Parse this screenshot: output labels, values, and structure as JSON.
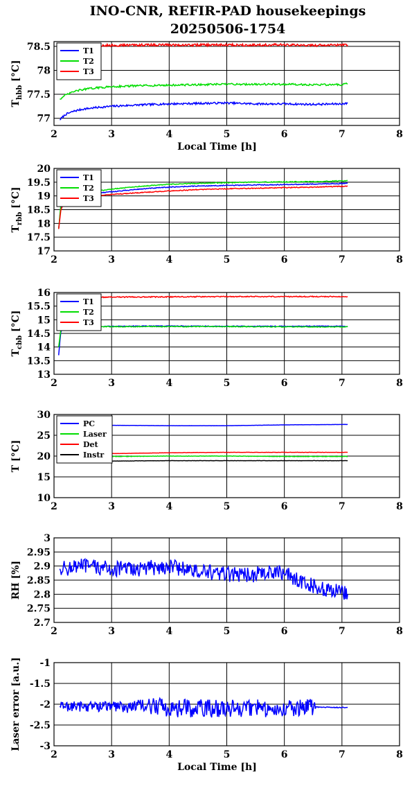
{
  "title": {
    "line1": "INO-CNR, REFIR-PAD housekeepings",
    "line2": "20250506-1754"
  },
  "chart_data": [
    {
      "type": "line",
      "id": "hbb",
      "ylabel_main": "T",
      "ylabel_sub": "hbb",
      "ylabel_unit": "[°C]",
      "xlabel": "Local Time [h]",
      "xlim": [
        2,
        8
      ],
      "ylim": [
        76.85,
        78.6
      ],
      "xticks": [
        2,
        3,
        4,
        5,
        6,
        7,
        8
      ],
      "yticks": [
        77,
        77.5,
        78,
        78.5
      ],
      "ytick_labels": [
        "77",
        "77.5",
        "78",
        "78.5"
      ],
      "grid": true,
      "legend": "top-left",
      "series": [
        {
          "name": "T1",
          "color": "#0000ff",
          "x": [
            2.1,
            2.2,
            2.35,
            2.5,
            2.7,
            3.0,
            3.5,
            4.0,
            4.5,
            5.0,
            5.5,
            6.0,
            6.5,
            7.0,
            7.1
          ],
          "y": [
            76.97,
            77.08,
            77.15,
            77.19,
            77.22,
            77.25,
            77.28,
            77.3,
            77.31,
            77.32,
            77.3,
            77.3,
            77.29,
            77.3,
            77.31
          ],
          "noise": 0.02
        },
        {
          "name": "T2",
          "color": "#00dd00",
          "x": [
            2.1,
            2.2,
            2.35,
            2.5,
            2.7,
            3.0,
            3.5,
            4.0,
            4.5,
            5.0,
            5.5,
            6.0,
            6.5,
            7.0,
            7.1
          ],
          "y": [
            77.4,
            77.48,
            77.56,
            77.6,
            77.63,
            77.66,
            77.68,
            77.69,
            77.7,
            77.71,
            77.71,
            77.71,
            77.7,
            77.7,
            77.72
          ],
          "noise": 0.02
        },
        {
          "name": "T3",
          "color": "#ff0000",
          "x": [
            2.1,
            2.5,
            3.0,
            3.5,
            4.0,
            4.5,
            5.0,
            5.5,
            6.0,
            6.5,
            7.0,
            7.1
          ],
          "y": [
            78.52,
            78.52,
            78.52,
            78.53,
            78.53,
            78.53,
            78.53,
            78.53,
            78.53,
            78.52,
            78.53,
            78.53
          ],
          "noise": 0.025
        }
      ]
    },
    {
      "type": "line",
      "id": "rbb",
      "ylabel_main": "T",
      "ylabel_sub": "rbb",
      "ylabel_unit": "[°C]",
      "xlabel": "",
      "xlim": [
        2,
        8
      ],
      "ylim": [
        17,
        20
      ],
      "xticks": [
        2,
        3,
        4,
        5,
        6,
        7,
        8
      ],
      "yticks": [
        17,
        17.5,
        18,
        18.5,
        19,
        19.5,
        20
      ],
      "ytick_labels": [
        "17",
        "17.5",
        "18",
        "18.5",
        "19",
        "19.5",
        "20"
      ],
      "grid": true,
      "legend": "top-left",
      "series": [
        {
          "name": "T1",
          "color": "#0000ff",
          "x": [
            2.08,
            2.12,
            2.2,
            2.5,
            3.0,
            3.5,
            4.0,
            4.5,
            5.0,
            5.5,
            6.0,
            6.5,
            7.0,
            7.1
          ],
          "y": [
            17.8,
            18.6,
            18.95,
            19.05,
            19.15,
            19.25,
            19.32,
            19.36,
            19.38,
            19.4,
            19.41,
            19.43,
            19.45,
            19.46
          ],
          "noise": 0.015
        },
        {
          "name": "T2",
          "color": "#00dd00",
          "x": [
            2.08,
            2.12,
            2.2,
            2.5,
            3.0,
            3.5,
            4.0,
            4.5,
            5.0,
            5.5,
            6.0,
            6.5,
            7.0,
            7.1
          ],
          "y": [
            17.8,
            18.7,
            19.0,
            19.1,
            19.25,
            19.35,
            19.42,
            19.46,
            19.48,
            19.5,
            19.51,
            19.52,
            19.55,
            19.56
          ],
          "noise": 0.015
        },
        {
          "name": "T3",
          "color": "#ff0000",
          "x": [
            2.08,
            2.12,
            2.2,
            2.5,
            3.0,
            3.5,
            4.0,
            4.5,
            5.0,
            5.5,
            6.0,
            6.5,
            7.0,
            7.1
          ],
          "y": [
            17.8,
            18.5,
            18.9,
            18.97,
            19.05,
            19.12,
            19.18,
            19.23,
            19.26,
            19.28,
            19.3,
            19.32,
            19.35,
            19.36
          ],
          "noise": 0.015
        }
      ]
    },
    {
      "type": "line",
      "id": "cbb",
      "ylabel_main": "T",
      "ylabel_sub": "cbb",
      "ylabel_unit": "[°C]",
      "xlabel": "",
      "xlim": [
        2,
        8
      ],
      "ylim": [
        13,
        16
      ],
      "xticks": [
        2,
        3,
        4,
        5,
        6,
        7,
        8
      ],
      "yticks": [
        13,
        13.5,
        14,
        14.5,
        15,
        15.5,
        16
      ],
      "ytick_labels": [
        "13",
        "13.5",
        "14",
        "14.5",
        "15",
        "15.5",
        "16"
      ],
      "grid": true,
      "legend": "top-left",
      "series": [
        {
          "name": "T1",
          "color": "#0000ff",
          "x": [
            2.08,
            2.12,
            2.2,
            2.5,
            3.0,
            4.0,
            5.0,
            6.0,
            7.0,
            7.1
          ],
          "y": [
            13.7,
            14.6,
            14.72,
            14.75,
            14.76,
            14.77,
            14.76,
            14.76,
            14.76,
            14.76
          ],
          "noise": 0.015
        },
        {
          "name": "T2",
          "color": "#00dd00",
          "x": [
            2.08,
            2.12,
            2.2,
            2.5,
            3.0,
            4.0,
            5.0,
            6.0,
            7.0,
            7.1
          ],
          "y": [
            14.0,
            14.65,
            14.72,
            14.74,
            14.75,
            14.75,
            14.75,
            14.74,
            14.74,
            14.74
          ],
          "noise": 0.015
        },
        {
          "name": "T3",
          "color": "#ff0000",
          "x": [
            2.1,
            3.0,
            4.0,
            5.0,
            6.0,
            7.0,
            7.1
          ],
          "y": [
            15.82,
            15.83,
            15.84,
            15.85,
            15.85,
            15.85,
            15.85
          ],
          "noise": 0.018
        }
      ]
    },
    {
      "type": "line",
      "id": "temps",
      "ylabel_main": "T [°C]",
      "ylabel_sub": "",
      "ylabel_unit": "",
      "xlabel": "",
      "xlim": [
        2,
        8
      ],
      "ylim": [
        10,
        30
      ],
      "xticks": [
        2,
        3,
        4,
        5,
        6,
        7,
        8
      ],
      "yticks": [
        10,
        15,
        20,
        25,
        30
      ],
      "ytick_labels": [
        "10",
        "15",
        "20",
        "25",
        "30"
      ],
      "grid": true,
      "legend": "top-left",
      "series": [
        {
          "name": "PC",
          "color": "#0000ff",
          "x": [
            2.1,
            3.0,
            4.0,
            5.0,
            6.0,
            7.0,
            7.1
          ],
          "y": [
            27.4,
            27.4,
            27.3,
            27.3,
            27.5,
            27.6,
            27.6
          ],
          "noise": 0.02
        },
        {
          "name": "Laser",
          "color": "#00dd00",
          "x": [
            2.1,
            3.0,
            4.0,
            5.0,
            6.0,
            7.0,
            7.1
          ],
          "y": [
            19.8,
            19.9,
            20.0,
            20.0,
            19.9,
            19.9,
            19.9
          ],
          "noise": 0.05
        },
        {
          "name": "Det",
          "color": "#ff0000",
          "x": [
            2.1,
            3.0,
            4.0,
            5.0,
            6.0,
            7.0,
            7.1
          ],
          "y": [
            20.5,
            20.6,
            20.8,
            20.9,
            20.9,
            20.9,
            20.9
          ],
          "noise": 0.03
        },
        {
          "name": "Instr",
          "color": "#000000",
          "x": [
            2.1,
            3.0,
            4.0,
            5.0,
            6.0,
            7.0,
            7.1
          ],
          "y": [
            18.8,
            18.8,
            18.9,
            18.9,
            18.9,
            18.9,
            18.9
          ],
          "noise": 0.03
        }
      ]
    },
    {
      "type": "line",
      "id": "rh",
      "ylabel_main": "RH [%]",
      "ylabel_sub": "",
      "ylabel_unit": "",
      "xlabel": "",
      "xlim": [
        2,
        8
      ],
      "ylim": [
        2.7,
        3.0
      ],
      "xticks": [
        2,
        3,
        4,
        5,
        6,
        7,
        8
      ],
      "yticks": [
        2.7,
        2.75,
        2.8,
        2.85,
        2.9,
        2.95,
        3.0
      ],
      "ytick_labels": [
        "2.7",
        "2.75",
        "2.8",
        "2.85",
        "2.9",
        "2.95",
        "3"
      ],
      "grid": true,
      "legend": "none",
      "series": [
        {
          "name": "",
          "color": "#0000ff",
          "x": [
            2.1,
            2.5,
            3.0,
            3.5,
            4.0,
            4.5,
            5.0,
            5.5,
            6.0,
            6.3,
            6.5,
            6.8,
            7.0,
            7.1
          ],
          "y": [
            2.89,
            2.9,
            2.89,
            2.89,
            2.9,
            2.88,
            2.87,
            2.87,
            2.88,
            2.84,
            2.83,
            2.81,
            2.81,
            2.8
          ],
          "noise": 0.028
        }
      ]
    },
    {
      "type": "line",
      "id": "laser",
      "ylabel_main": "Laser error [a.u.]",
      "ylabel_sub": "",
      "ylabel_unit": "",
      "xlabel": "Local Time [h]",
      "xlim": [
        2,
        8
      ],
      "ylim": [
        -3,
        -1
      ],
      "xticks": [
        2,
        3,
        4,
        5,
        6,
        7,
        8
      ],
      "yticks": [
        -3,
        -2.5,
        -2,
        -1.5,
        -1
      ],
      "ytick_labels": [
        "-3",
        "-2.5",
        "-2",
        "-1.5",
        "-1"
      ],
      "grid": true,
      "legend": "none",
      "series": [
        {
          "name": "",
          "color": "#0000ff",
          "x": [
            2.1,
            3.0,
            3.9,
            4.0,
            5.0,
            6.0,
            6.5,
            6.55,
            7.0,
            7.1
          ],
          "y": [
            -2.05,
            -2.05,
            -2.05,
            -2.1,
            -2.1,
            -2.1,
            -2.05,
            -2.07,
            -2.08,
            -2.08
          ],
          "noise": [
            0.13,
            0.13,
            0.22,
            0.22,
            0.22,
            0.22,
            0.22,
            0.01,
            0.01,
            0.01
          ]
        }
      ]
    }
  ]
}
